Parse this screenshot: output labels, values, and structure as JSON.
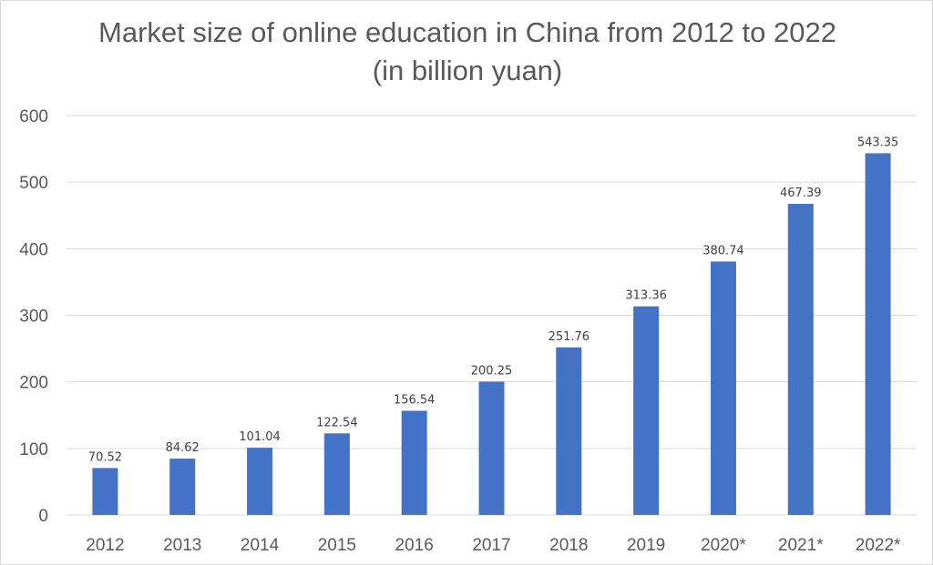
{
  "chart_data": {
    "type": "bar",
    "title": "Market size of online education in China from 2012 to 2022 (in billion yuan)",
    "categories": [
      "2012",
      "2013",
      "2014",
      "2015",
      "2016",
      "2017",
      "2018",
      "2019",
      "2020*",
      "2021*",
      "2022*"
    ],
    "values": [
      70.52,
      84.62,
      101.04,
      122.54,
      156.54,
      200.25,
      251.76,
      313.36,
      380.74,
      467.39,
      543.35
    ],
    "value_labels": [
      "70.52",
      "84.62",
      "101.04",
      "122.54",
      "156.54",
      "200.25",
      "251.76",
      "313.36",
      "380.74",
      "467.39",
      "543.35"
    ],
    "y_ticks": [
      "0",
      "100",
      "200",
      "300",
      "400",
      "500",
      "600"
    ],
    "ylim": [
      0,
      600
    ],
    "grid": true,
    "legend": "none",
    "bar_color": "#4472c4",
    "grid_color": "#d9d9d9",
    "text_color": "#595959"
  }
}
